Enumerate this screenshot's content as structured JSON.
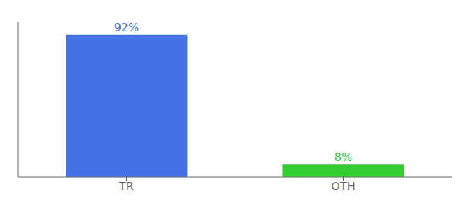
{
  "chart_data": {
    "type": "bar",
    "categories": [
      "TR",
      "OTH"
    ],
    "values": [
      92,
      8
    ],
    "value_labels": [
      "92%",
      "8%"
    ],
    "colors": [
      "#4472e4",
      "#33cc33"
    ],
    "ylim": [
      0,
      100
    ],
    "data_labels": true,
    "tick_labels": "x"
  }
}
